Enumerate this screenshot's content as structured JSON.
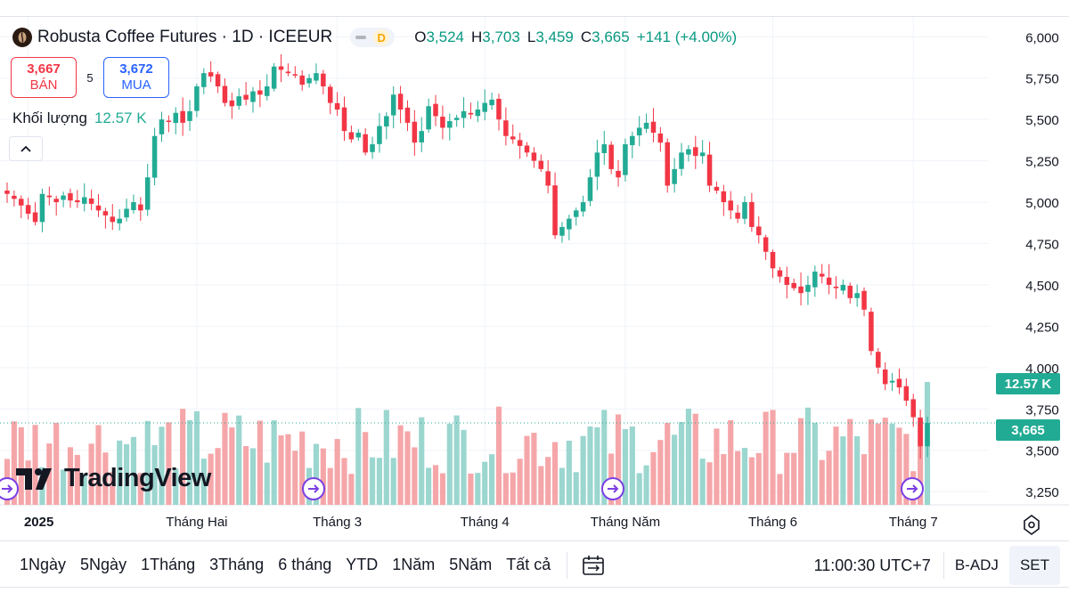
{
  "header": {
    "symbol_title": "Robusta Coffee Futures · 1D · ICEEUR",
    "interval_badge": "D",
    "ohlc": [
      {
        "key": "O",
        "value": "3,524"
      },
      {
        "key": "H",
        "value": "3,703"
      },
      {
        "key": "L",
        "value": "3,459"
      },
      {
        "key": "C",
        "value": "3,665"
      },
      {
        "key": "",
        "value": "+141 (+4.00%)"
      }
    ]
  },
  "trade": {
    "sell_price": "3,667",
    "sell_label": "BÁN",
    "spread": "5",
    "buy_price": "3,672",
    "buy_label": "MUA"
  },
  "volume_legend": {
    "label": "Khối lượng",
    "value": "12.57 K"
  },
  "logo_text": "TradingView",
  "price_tags": {
    "volume": "12.57 K",
    "last": "3,665"
  },
  "bottom": {
    "ranges": [
      "1Ngày",
      "5Ngày",
      "1Tháng",
      "3Tháng",
      "6 tháng",
      "YTD",
      "1Năm",
      "5Năm",
      "Tất cả"
    ],
    "time": "11:00:30 UTC+7",
    "adj": "B-ADJ",
    "set": "SET"
  },
  "colors": {
    "up": "#22ab94",
    "down": "#f23645",
    "up_vol": "#9bd6cf",
    "down_vol": "#f5a6a9",
    "grid": "#f0f3fa"
  },
  "icons": [
    "coffee-icon",
    "chevron-up-icon",
    "calendar-range-icon",
    "settings-gear-icon",
    "event-arrow-icon"
  ],
  "chart_data": {
    "type": "candlestick",
    "title": "Robusta Coffee Futures · 1D · ICEEUR",
    "y_ticks": [
      6000,
      5750,
      5500,
      5250,
      5000,
      4750,
      4500,
      4250,
      4000,
      3750,
      3500,
      3250
    ],
    "y_tick_labels": [
      "6,000",
      "5,750",
      "5,500",
      "5,250",
      "5,000",
      "4,750",
      "4,500",
      "4,250",
      "4,000",
      "3,750",
      "3,500",
      "3,250"
    ],
    "ylim": [
      3170,
      6120
    ],
    "x_labels": [
      {
        "label": "2025",
        "index": 3
      },
      {
        "label": "Tháng Hai",
        "index": 27
      },
      {
        "label": "Tháng 3",
        "index": 47
      },
      {
        "label": "Tháng 4",
        "index": 68
      },
      {
        "label": "Tháng Năm",
        "index": 88
      },
      {
        "label": "Tháng 6",
        "index": 109
      },
      {
        "label": "Tháng 7",
        "index": 129
      }
    ],
    "candle_count": 132,
    "closes": [
      5050,
      5020,
      4980,
      4930,
      4880,
      5050,
      5030,
      5000,
      5040,
      5010,
      5000,
      5030,
      4990,
      4950,
      4920,
      4880,
      4900,
      4960,
      5000,
      4950,
      5150,
      5400,
      5500,
      5490,
      5540,
      5480,
      5550,
      5700,
      5780,
      5760,
      5700,
      5600,
      5580,
      5640,
      5620,
      5670,
      5650,
      5700,
      5820,
      5800,
      5780,
      5770,
      5710,
      5750,
      5780,
      5700,
      5600,
      5560,
      5430,
      5380,
      5420,
      5300,
      5350,
      5460,
      5520,
      5650,
      5560,
      5480,
      5360,
      5430,
      5580,
      5520,
      5450,
      5490,
      5510,
      5550,
      5530,
      5560,
      5600,
      5620,
      5500,
      5400,
      5380,
      5340,
      5300,
      5250,
      5200,
      5100,
      4800,
      4850,
      4900,
      4950,
      5000,
      5150,
      5300,
      5350,
      5200,
      5150,
      5350,
      5400,
      5450,
      5480,
      5420,
      5360,
      5100,
      5200,
      5300,
      5320,
      5280,
      5300,
      5100,
      5070,
      5000,
      4950,
      4900,
      5000,
      4850,
      4800,
      4700,
      4600,
      4550,
      4500,
      4480,
      4450,
      4500,
      4580,
      4550,
      4500,
      4480,
      4500,
      4420,
      4450,
      4350,
      4100,
      4000,
      3900,
      3920,
      3880,
      3800,
      3700,
      3524,
      3665
    ],
    "volume_scale_max": 12570,
    "last_price": 3665,
    "last_volume": 12570
  }
}
